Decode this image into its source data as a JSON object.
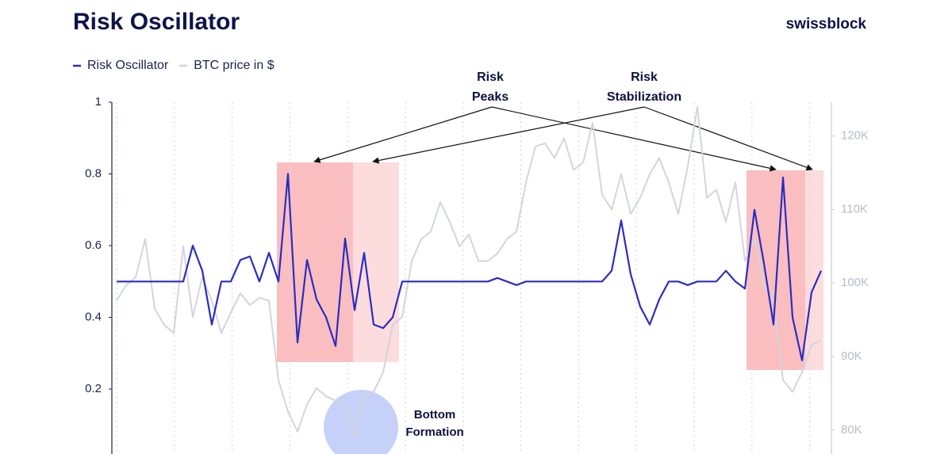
{
  "chart_data": {
    "type": "line",
    "title": "Risk Oscillator",
    "logo": "swissblock",
    "categories": [
      null,
      null,
      null,
      null,
      null,
      null,
      null,
      null,
      null,
      null,
      null,
      null,
      null,
      null,
      null,
      null,
      null,
      null,
      null,
      null,
      null,
      null,
      null,
      null,
      null,
      null,
      null,
      null,
      null,
      null,
      null,
      null,
      null,
      null,
      null,
      null,
      null,
      null,
      null,
      null,
      null,
      null,
      null,
      null,
      null,
      null,
      null,
      null,
      null,
      null,
      null,
      null,
      null,
      null,
      null,
      null,
      null,
      null,
      null,
      null,
      null,
      null,
      null,
      null,
      null,
      null,
      null,
      null,
      null,
      null,
      null,
      null,
      null,
      null,
      null
    ],
    "series": [
      {
        "name": "Risk Oscillator",
        "color": "#2b2dbf",
        "axis": "y",
        "values": [
          0.5,
          0.5,
          0.5,
          0.5,
          0.5,
          0.5,
          0.5,
          0.5,
          0.6,
          0.53,
          0.38,
          0.5,
          0.5,
          0.56,
          0.57,
          0.5,
          0.58,
          0.5,
          0.8,
          0.33,
          0.56,
          0.45,
          0.4,
          0.32,
          0.62,
          0.42,
          0.58,
          0.38,
          0.37,
          0.4,
          0.5,
          0.5,
          0.5,
          0.5,
          0.5,
          0.5,
          0.5,
          0.5,
          0.5,
          0.5,
          0.51,
          0.5,
          0.49,
          0.5,
          0.5,
          0.5,
          0.5,
          0.5,
          0.5,
          0.5,
          0.5,
          0.5,
          0.53,
          0.67,
          0.52,
          0.43,
          0.38,
          0.45,
          0.5,
          0.5,
          0.49,
          0.5,
          0.5,
          0.5,
          0.53,
          0.5,
          0.48,
          0.7,
          0.55,
          0.38,
          0.79,
          0.4,
          0.28,
          0.47,
          0.53
        ]
      },
      {
        "name": "BTC price in $",
        "color": "#d3d5dd",
        "axis": "y2",
        "values": [
          97600,
          99700,
          100800,
          106000,
          96500,
          94300,
          93200,
          105000,
          95400,
          100800,
          97600,
          93200,
          96000,
          98600,
          97000,
          98000,
          97600,
          86800,
          82500,
          79800,
          83500,
          85700,
          84600,
          84000,
          83500,
          79200,
          84600,
          85200,
          87900,
          94300,
          95400,
          103000,
          106000,
          107000,
          111000,
          108300,
          105000,
          106600,
          103000,
          103000,
          104000,
          106000,
          107000,
          113700,
          118600,
          119000,
          117000,
          119700,
          115400,
          116400,
          121800,
          112000,
          110000,
          114800,
          109400,
          111600,
          114800,
          117000,
          113700,
          109400,
          115900,
          124000,
          111600,
          112700,
          108300,
          113700,
          103000,
          106000,
          99700,
          97600,
          86800,
          85200,
          87900,
          91600,
          92200
        ]
      }
    ],
    "ylim": [
      0.02,
      1
    ],
    "yticks": [
      0.2,
      0.4,
      0.6,
      0.8,
      1
    ],
    "y2lim": [
      76800,
      124600
    ],
    "y2ticks": [
      {
        "value": 80000,
        "label": "80K"
      },
      {
        "value": 90000,
        "label": "90K"
      },
      {
        "value": 100000,
        "label": "100K"
      },
      {
        "value": 110000,
        "label": "110K"
      },
      {
        "value": 120000,
        "label": "120K"
      }
    ],
    "annotations": [
      {
        "lines": [
          "Risk",
          "Peaks"
        ]
      },
      {
        "lines": [
          "Risk",
          "Stabilization"
        ]
      },
      {
        "lines": [
          "Bottom",
          "Formation"
        ]
      }
    ]
  }
}
